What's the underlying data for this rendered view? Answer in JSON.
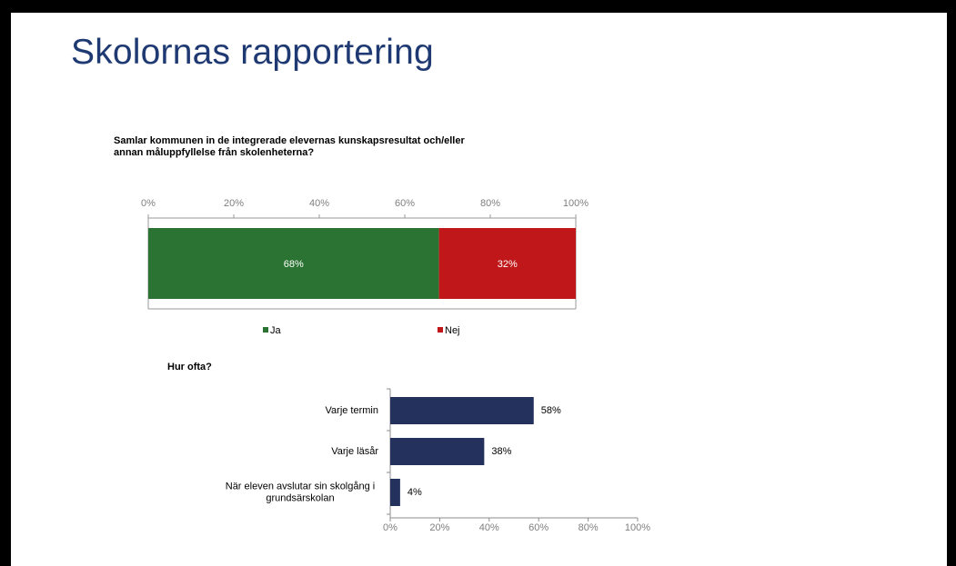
{
  "slide": {
    "title": "Skolornas rapportering"
  },
  "colors": {
    "title": "#1f3a73",
    "ja": "#2a7332",
    "nej": "#c0181a",
    "bar": "#23315c"
  },
  "chart_data": [
    {
      "type": "bar",
      "orientation": "horizontal",
      "stacked": true,
      "title": "Samlar kommunen in de integrerade elevernas kunskapsresultat och/eller annan måluppfyllelse från skolenheterna?",
      "xlim": [
        0,
        100
      ],
      "ticks": [
        "0%",
        "20%",
        "40%",
        "60%",
        "80%",
        "100%"
      ],
      "legend_position": "bottom",
      "series": [
        {
          "name": "Ja",
          "values": [
            68
          ],
          "label": "68%",
          "color": "#2a7332"
        },
        {
          "name": "Nej",
          "values": [
            32
          ],
          "label": "32%",
          "color": "#c0181a"
        }
      ]
    },
    {
      "type": "bar",
      "orientation": "horizontal",
      "title": "Hur ofta?",
      "xlim": [
        0,
        100
      ],
      "ticks": [
        "0%",
        "20%",
        "40%",
        "60%",
        "80%",
        "100%"
      ],
      "categories": [
        [
          "Varje termin"
        ],
        [
          "Varje läsår"
        ],
        [
          "När eleven avslutar sin skolgång i",
          "grundsärskolan"
        ]
      ],
      "values": [
        58,
        38,
        4
      ],
      "labels": [
        "58%",
        "38%",
        "4%"
      ],
      "color": "#23315c"
    }
  ]
}
